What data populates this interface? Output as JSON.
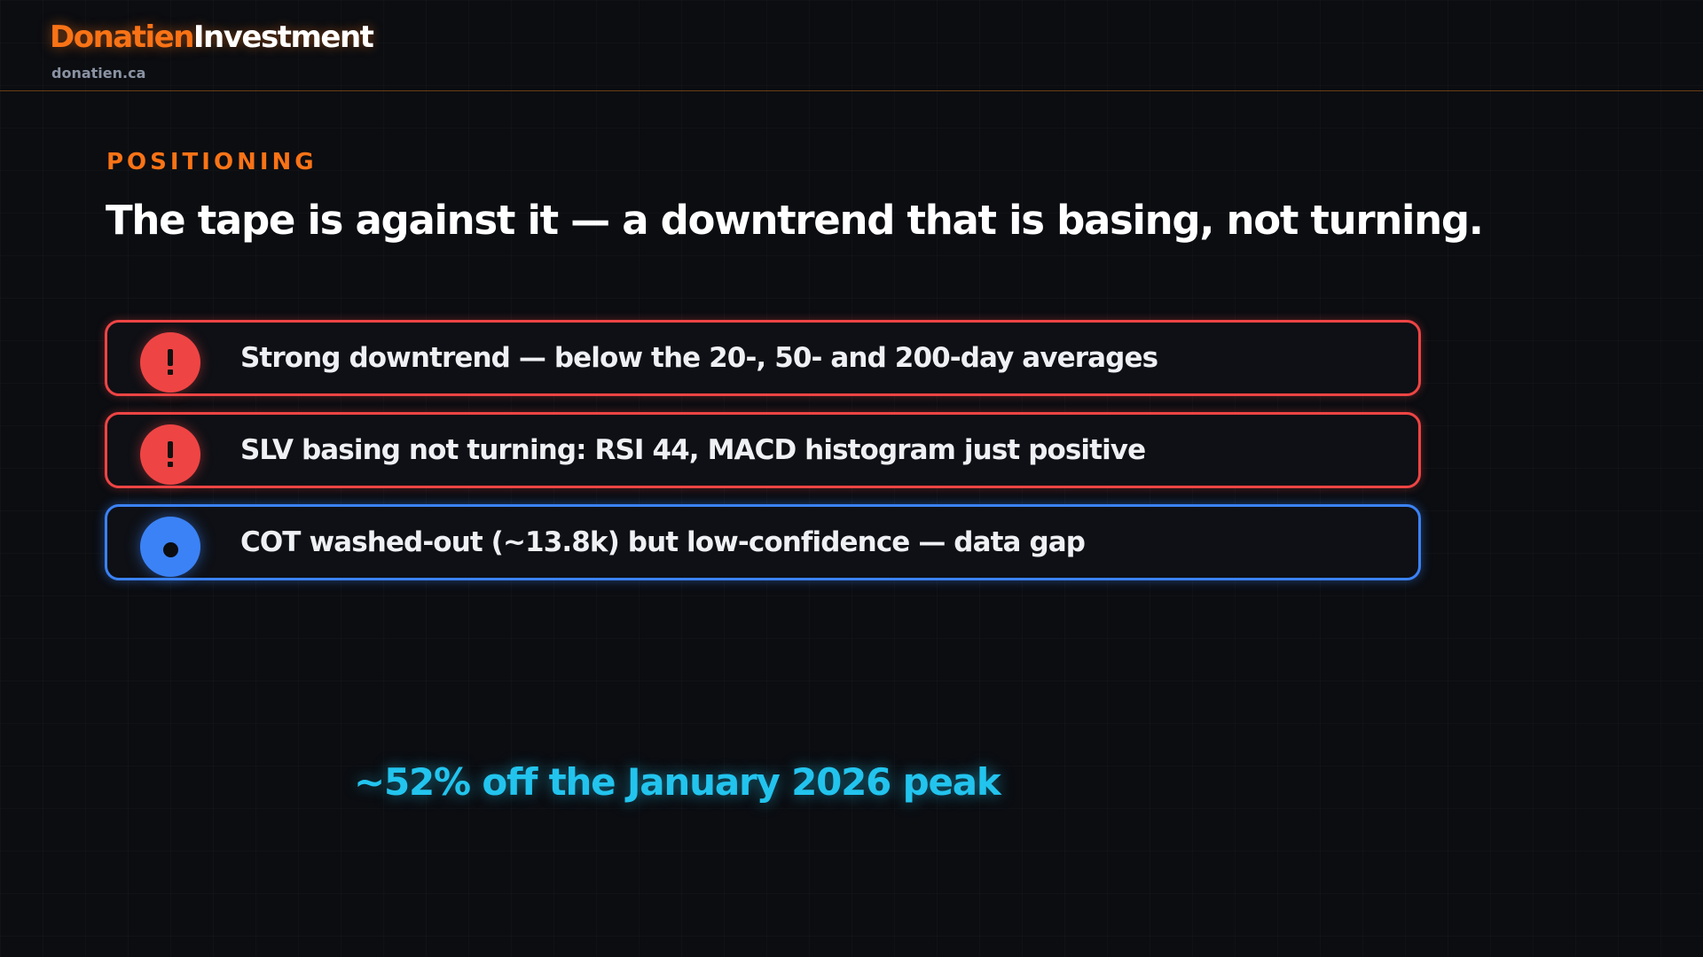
{
  "brand": {
    "name_part1": "Donatien",
    "name_part2": "Investment",
    "domain": "donatien.ca",
    "accent_color": "#f97316"
  },
  "slide": {
    "eyebrow": "POSITIONING",
    "headline": "The tape is against it — a downtrend that is basing, not turning.",
    "items": [
      {
        "text": "Strong downtrend — below the 20-, 50- and 200-day averages",
        "icon": "exclamation-icon",
        "status": "warning",
        "color": "#ef4444"
      },
      {
        "text": "SLV basing not turning: RSI 44, MACD histogram just positive",
        "icon": "exclamation-icon",
        "status": "warning",
        "color": "#ef4444"
      },
      {
        "text": "COT washed-out (~13.8k) but low-confidence — data gap",
        "icon": "dot-icon",
        "status": "info",
        "color": "#3b82f6"
      }
    ],
    "callout": "~52% off the January 2026 peak",
    "callout_color": "#22c4ee"
  }
}
